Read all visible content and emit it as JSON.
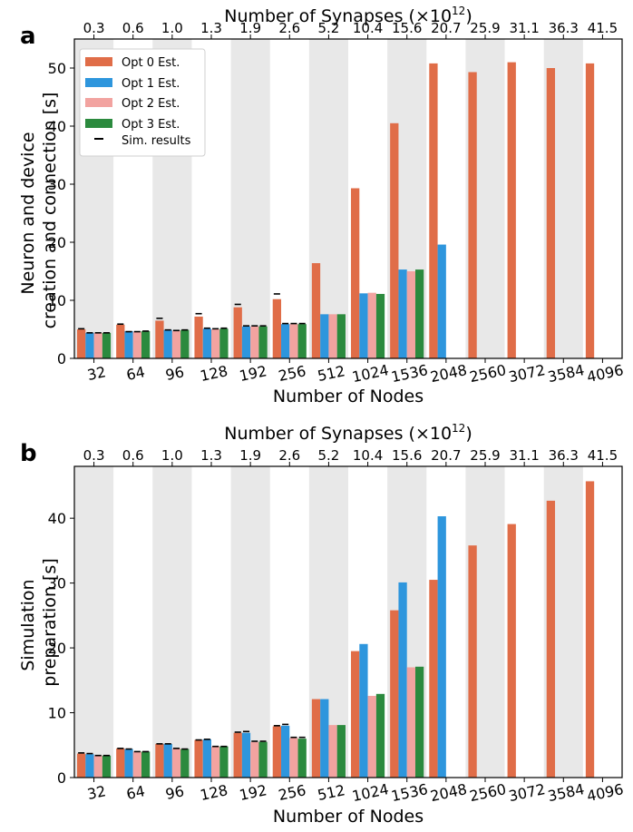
{
  "chart_data": [
    {
      "type": "bar",
      "panel_label": "a",
      "title": "Number of Synapses (×10",
      "title_superscript": "12",
      "title_close": ")",
      "xlabel": "Number of Nodes",
      "ylabel_lines": [
        "Neuron and device",
        "creation and connection [s]"
      ],
      "categories": [
        "32",
        "64",
        "96",
        "128",
        "192",
        "256",
        "512",
        "1024",
        "1536",
        "2048",
        "2560",
        "3072",
        "3584",
        "4096"
      ],
      "secondary_categories": [
        "0.3",
        "0.6",
        "1.0",
        "1.3",
        "1.9",
        "2.6",
        "5.2",
        "10.4",
        "15.6",
        "20.7",
        "25.9",
        "31.1",
        "36.3",
        "41.5"
      ],
      "yticks": [
        0,
        10,
        20,
        30,
        40,
        50
      ],
      "ylim": [
        0,
        55
      ],
      "legend_location": "upper-left",
      "series": [
        {
          "name": "Opt 0 Est.",
          "color": "#E06D48",
          "values": [
            5.0,
            5.8,
            6.5,
            7.2,
            8.8,
            10.2,
            16.4,
            29.3,
            40.5,
            50.8,
            49.3,
            51.0,
            50.0,
            50.8
          ]
        },
        {
          "name": "Opt 1 Est.",
          "color": "#2E96DD",
          "values": [
            4.4,
            4.7,
            4.9,
            5.1,
            5.5,
            5.9,
            7.6,
            11.2,
            15.3,
            19.6,
            null,
            null,
            null,
            null
          ]
        },
        {
          "name": "Opt 2 Est.",
          "color": "#F2A3A0",
          "values": [
            4.4,
            4.6,
            4.8,
            5.0,
            5.5,
            5.9,
            7.6,
            11.3,
            15.0,
            null,
            null,
            null,
            null,
            null
          ]
        },
        {
          "name": "Opt 3 Est.",
          "color": "#2B8A3E",
          "values": [
            4.4,
            4.7,
            4.9,
            5.1,
            5.5,
            5.9,
            7.6,
            11.1,
            15.3,
            null,
            null,
            null,
            null,
            null
          ]
        }
      ],
      "sim_results": {
        "name": "Sim. results",
        "values": [
          [
            5.1,
            5.9,
            6.9,
            7.7,
            9.3,
            11.1,
            null,
            null,
            null,
            null,
            null,
            null,
            null,
            null
          ],
          [
            4.4,
            4.6,
            4.9,
            5.2,
            5.6,
            6.0,
            null,
            null,
            null,
            null,
            null,
            null,
            null,
            null
          ],
          [
            4.4,
            4.6,
            4.8,
            5.1,
            5.6,
            6.0,
            null,
            null,
            null,
            null,
            null,
            null,
            null,
            null
          ],
          [
            4.4,
            4.7,
            4.9,
            5.2,
            5.6,
            6.0,
            null,
            null,
            null,
            null,
            null,
            null,
            null,
            null
          ]
        ]
      }
    },
    {
      "type": "bar",
      "panel_label": "b",
      "title": "Number of Synapses (×10",
      "title_superscript": "12",
      "title_close": ")",
      "xlabel": "Number of Nodes",
      "ylabel_lines": [
        "Simulation",
        "preparation [s]"
      ],
      "categories": [
        "32",
        "64",
        "96",
        "128",
        "192",
        "256",
        "512",
        "1024",
        "1536",
        "2048",
        "2560",
        "3072",
        "3584",
        "4096"
      ],
      "secondary_categories": [
        "0.3",
        "0.6",
        "1.0",
        "1.3",
        "1.9",
        "2.6",
        "5.2",
        "10.4",
        "15.6",
        "20.7",
        "25.9",
        "31.1",
        "36.3",
        "41.5"
      ],
      "yticks": [
        0,
        10,
        20,
        30,
        40
      ],
      "ylim": [
        0,
        48
      ],
      "series": [
        {
          "name": "Opt 0 Est.",
          "color": "#E06D48",
          "values": [
            3.7,
            4.5,
            5.2,
            5.8,
            6.9,
            7.9,
            12.1,
            19.5,
            25.8,
            30.5,
            35.8,
            39.1,
            42.7,
            45.7
          ]
        },
        {
          "name": "Opt 1 Est.",
          "color": "#2E96DD",
          "values": [
            3.6,
            4.4,
            5.2,
            5.9,
            6.9,
            8.0,
            12.1,
            20.6,
            30.1,
            40.3,
            null,
            null,
            null,
            null
          ]
        },
        {
          "name": "Opt 2 Est.",
          "color": "#F2A3A0",
          "values": [
            3.4,
            4.0,
            4.5,
            4.8,
            5.5,
            6.1,
            8.1,
            12.6,
            17.0,
            null,
            null,
            null,
            null,
            null
          ]
        },
        {
          "name": "Opt 3 Est.",
          "color": "#2B8A3E",
          "values": [
            3.4,
            4.0,
            4.4,
            4.8,
            5.5,
            6.0,
            8.1,
            12.9,
            17.1,
            null,
            null,
            null,
            null,
            null
          ]
        }
      ],
      "sim_results": {
        "name": "Sim. results",
        "values": [
          [
            3.8,
            4.5,
            5.2,
            5.8,
            7.0,
            8.0,
            null,
            null,
            null,
            null,
            null,
            null,
            null,
            null
          ],
          [
            3.7,
            4.4,
            5.2,
            5.9,
            7.1,
            8.2,
            null,
            null,
            null,
            null,
            null,
            null,
            null,
            null
          ],
          [
            3.4,
            4.0,
            4.5,
            4.8,
            5.6,
            6.2,
            null,
            null,
            null,
            null,
            null,
            null,
            null,
            null
          ],
          [
            3.4,
            4.0,
            4.4,
            4.8,
            5.6,
            6.2,
            null,
            null,
            null,
            null,
            null,
            null,
            null,
            null
          ]
        ]
      }
    }
  ]
}
